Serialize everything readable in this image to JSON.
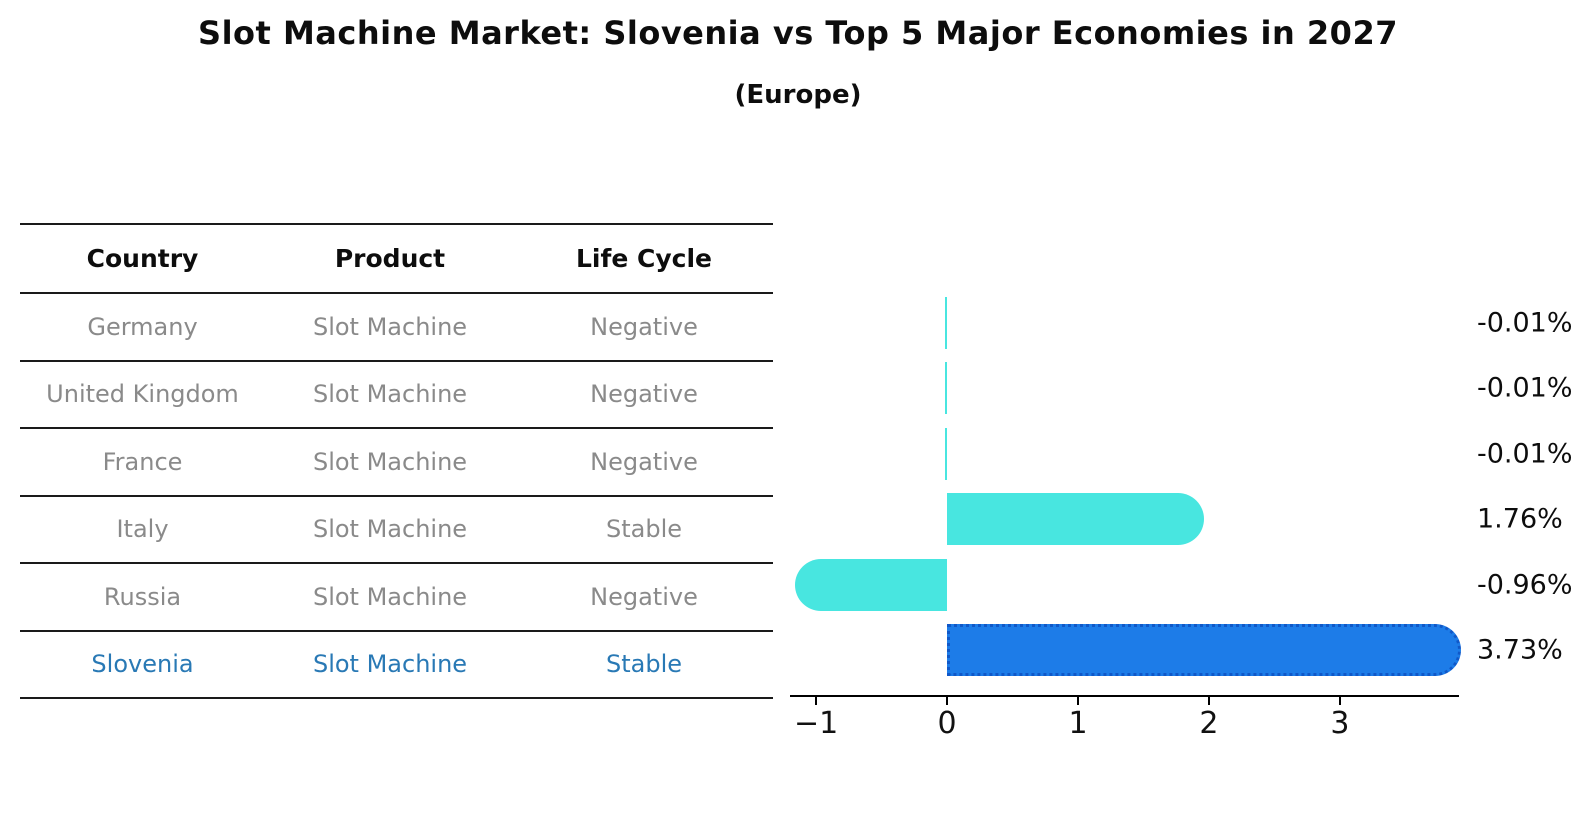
{
  "title": "Slot Machine Market: Slovenia vs Top 5 Major Economies in 2027",
  "subtitle": "(Europe)",
  "table": {
    "columns": [
      "Country",
      "Product",
      "Life Cycle"
    ],
    "rows": [
      {
        "country": "Germany",
        "product": "Slot Machine",
        "life_cycle": "Negative",
        "highlight": false
      },
      {
        "country": "United Kingdom",
        "product": "Slot Machine",
        "life_cycle": "Negative",
        "highlight": false
      },
      {
        "country": "France",
        "product": "Slot Machine",
        "life_cycle": "Negative",
        "highlight": false
      },
      {
        "country": "Italy",
        "product": "Slot Machine",
        "life_cycle": "Stable",
        "highlight": false
      },
      {
        "country": "Russia",
        "product": "Slot Machine",
        "life_cycle": "Negative",
        "highlight": false
      },
      {
        "country": "Slovenia",
        "product": "Slot Machine",
        "life_cycle": "Stable",
        "highlight": true
      }
    ]
  },
  "chart_data": {
    "type": "bar",
    "orientation": "horizontal",
    "title": "Slot Machine Market: Slovenia vs Top 5 Major Economies in 2027",
    "subtitle": "(Europe)",
    "categories": [
      "Germany",
      "United Kingdom",
      "France",
      "Italy",
      "Russia",
      "Slovenia"
    ],
    "values": [
      -0.01,
      -0.01,
      -0.01,
      1.76,
      -0.96,
      3.73
    ],
    "value_labels": [
      "-0.01%",
      "-0.01%",
      "-0.01%",
      "1.76%",
      "-0.96%",
      "3.73%"
    ],
    "highlight_category": "Slovenia",
    "x_ticks": [
      -1,
      0,
      1,
      2,
      3
    ],
    "x_tick_labels": [
      "−1",
      "0",
      "1",
      "2",
      "3"
    ],
    "xlim": [
      -1.2,
      3.91
    ],
    "grid": false,
    "legend": "none",
    "colors": {
      "default_bar": "#48e6e0",
      "highlight_bar": "#1d7ce8",
      "highlight_edge": "#1058c8",
      "highlight_text": "#2979b5",
      "row_text": "#8a8a8a",
      "header_text": "#0d0d0d",
      "line": "#1a1a1a",
      "axis": "#000000"
    }
  }
}
